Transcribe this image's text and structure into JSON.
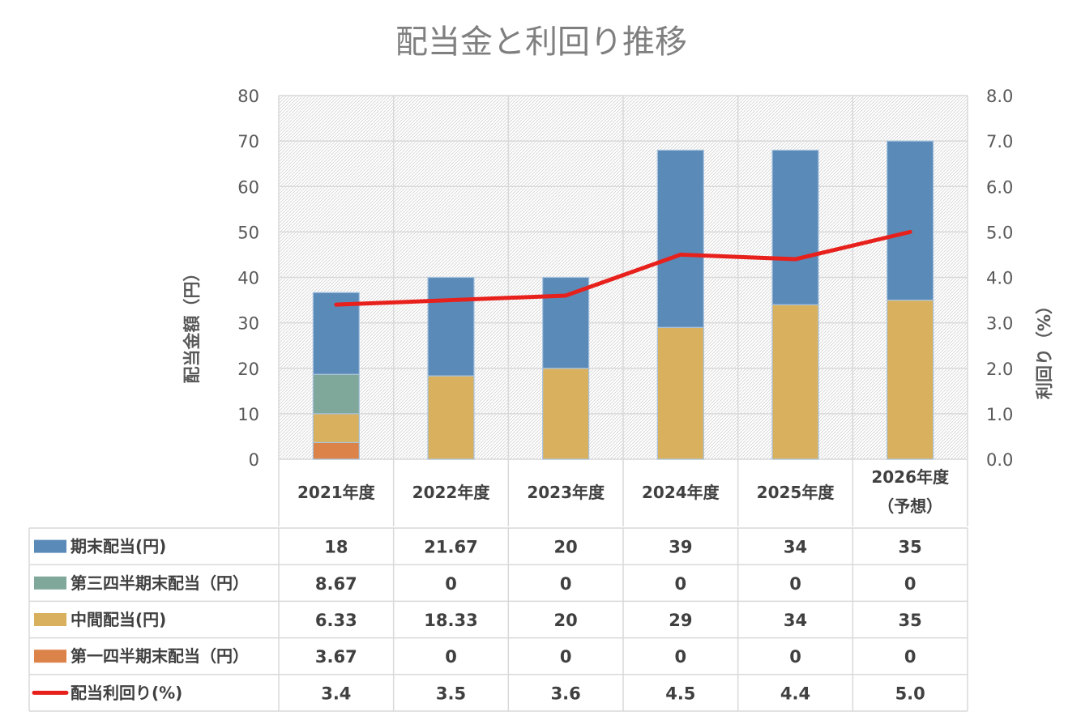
{
  "chart_data": {
    "type": "bar",
    "stacked": true,
    "title": "配当金と利回り推移",
    "categories": [
      [
        "2021年度"
      ],
      [
        "2022年度"
      ],
      [
        "2023年度"
      ],
      [
        "2024年度"
      ],
      [
        "2025年度"
      ],
      [
        "2026年度",
        "（予想）"
      ]
    ],
    "ylabel": "配当金額（円）",
    "ylim": [
      0,
      80
    ],
    "yticks": [
      "0",
      "10",
      "20",
      "30",
      "40",
      "50",
      "60",
      "70",
      "80"
    ],
    "y2label": "利回り（%）",
    "y2lim": [
      0,
      8
    ],
    "y2ticks": [
      "0.0",
      "1.0",
      "2.0",
      "3.0",
      "4.0",
      "5.0",
      "6.0",
      "7.0",
      "8.0"
    ],
    "grid": true,
    "data_table": true,
    "series": [
      {
        "name": "期末配当(円)",
        "kind": "bar",
        "color": "#5a8ab8",
        "values": [
          18,
          21.67,
          20,
          39,
          34,
          35
        ],
        "labels": [
          "18",
          "21.67",
          "20",
          "39",
          "34",
          "35"
        ]
      },
      {
        "name": "第三四半期末配当（円）",
        "kind": "bar",
        "color": "#7fa89a",
        "values": [
          8.67,
          0,
          0,
          0,
          0,
          0
        ],
        "labels": [
          "8.67",
          "0",
          "0",
          "0",
          "0",
          "0"
        ]
      },
      {
        "name": "中間配当(円)",
        "kind": "bar",
        "color": "#d9b15e",
        "values": [
          6.33,
          18.33,
          20,
          29,
          34,
          35
        ],
        "labels": [
          "6.33",
          "18.33",
          "20",
          "29",
          "34",
          "35"
        ]
      },
      {
        "name": "第一四半期末配当（円）",
        "kind": "bar",
        "color": "#dc834a",
        "values": [
          3.67,
          0,
          0,
          0,
          0,
          0
        ],
        "labels": [
          "3.67",
          "0",
          "0",
          "0",
          "0",
          "0"
        ]
      },
      {
        "name": "配当利回り(%)",
        "kind": "line",
        "axis": "right",
        "color": "#e8201c",
        "values": [
          3.4,
          3.5,
          3.6,
          4.5,
          4.4,
          5.0
        ],
        "labels": [
          "3.4",
          "3.5",
          "3.6",
          "4.5",
          "4.4",
          "5.0"
        ]
      }
    ],
    "stack_order": [
      3,
      2,
      1,
      0
    ]
  }
}
